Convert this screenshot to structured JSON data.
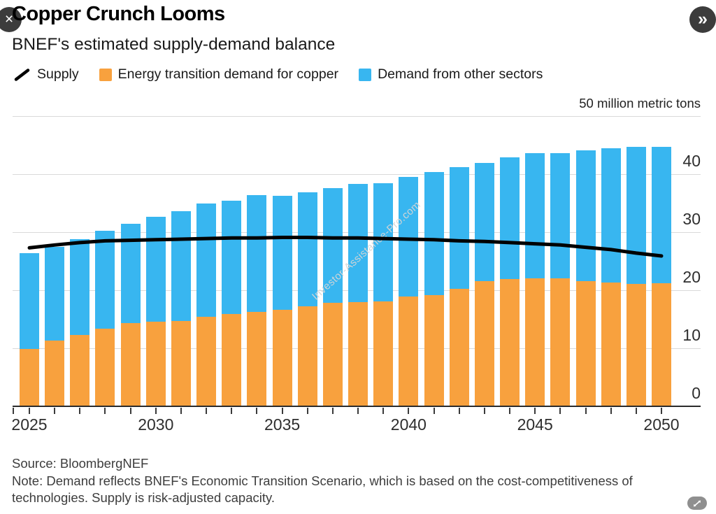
{
  "window": {
    "close_icon": "×",
    "next_icon": "»"
  },
  "header": {
    "title": "Copper Crunch Looms",
    "subtitle": "BNEF's estimated supply-demand balance"
  },
  "legend": {
    "items": [
      {
        "label": "Supply",
        "swatch": "line",
        "color": "#000000"
      },
      {
        "label": "Energy transition demand for copper",
        "swatch": "square",
        "color": "#F8A13E"
      },
      {
        "label": "Demand from other sectors",
        "swatch": "square",
        "color": "#38B6F0"
      }
    ]
  },
  "chart_data": {
    "type": "bar",
    "subtype": "stacked-bars-with-line",
    "title": "Copper Crunch Looms",
    "subtitle": "BNEF's estimated supply-demand balance",
    "unit_label": "50 million metric tons",
    "categories": [
      2025,
      2026,
      2027,
      2028,
      2029,
      2030,
      2031,
      2032,
      2033,
      2034,
      2035,
      2036,
      2037,
      2038,
      2039,
      2040,
      2041,
      2042,
      2043,
      2044,
      2045,
      2046,
      2047,
      2048,
      2049,
      2050
    ],
    "series": [
      {
        "name": "Energy transition demand for copper",
        "type": "bar-stack",
        "color": "#F8A13E",
        "values": [
          9.8,
          11.2,
          12.2,
          13.3,
          14.2,
          14.4,
          14.6,
          15.3,
          15.8,
          16.1,
          16.5,
          17.1,
          17.7,
          17.8,
          17.9,
          18.8,
          19.0,
          20.1,
          21.4,
          21.8,
          21.9,
          21.9,
          21.4,
          21.2,
          21.0,
          21.1
        ]
      },
      {
        "name": "Demand from other sectors",
        "type": "bar-stack",
        "color": "#38B6F0",
        "values": [
          16.5,
          16.1,
          16.5,
          16.8,
          17.1,
          18.1,
          18.9,
          19.5,
          19.5,
          20.2,
          19.6,
          19.7,
          19.8,
          20.4,
          20.4,
          20.6,
          21.3,
          21.0,
          20.4,
          21.0,
          21.6,
          21.6,
          22.6,
          23.1,
          23.6,
          23.5
        ]
      },
      {
        "name": "Supply",
        "type": "line",
        "color": "#000000",
        "values": [
          27.3,
          27.8,
          28.2,
          28.5,
          28.6,
          28.7,
          28.8,
          28.9,
          29.0,
          29.0,
          29.1,
          29.1,
          29.0,
          29.0,
          28.9,
          28.8,
          28.7,
          28.5,
          28.4,
          28.2,
          28.0,
          27.8,
          27.4,
          27.0,
          26.4,
          25.9
        ]
      }
    ],
    "ylim": [
      0,
      50
    ],
    "y_ticks": [
      0,
      10,
      20,
      30,
      40
    ],
    "x_tick_labels": [
      "2025",
      "2030",
      "2035",
      "2040",
      "2045",
      "2050"
    ],
    "x_tick_positions": [
      0,
      5,
      10,
      15,
      20,
      25
    ],
    "grid": "horizontal",
    "legend_position": "top"
  },
  "footer": {
    "source": "Source: BloombergNEF",
    "note_line1": "Note: Demand reflects BNEF's Economic Transition Scenario, which is based on the cost-competitiveness of",
    "note_line2": "technologies. Supply is risk-adjusted capacity."
  },
  "watermark": "Investor-Assistance-Pro.com"
}
